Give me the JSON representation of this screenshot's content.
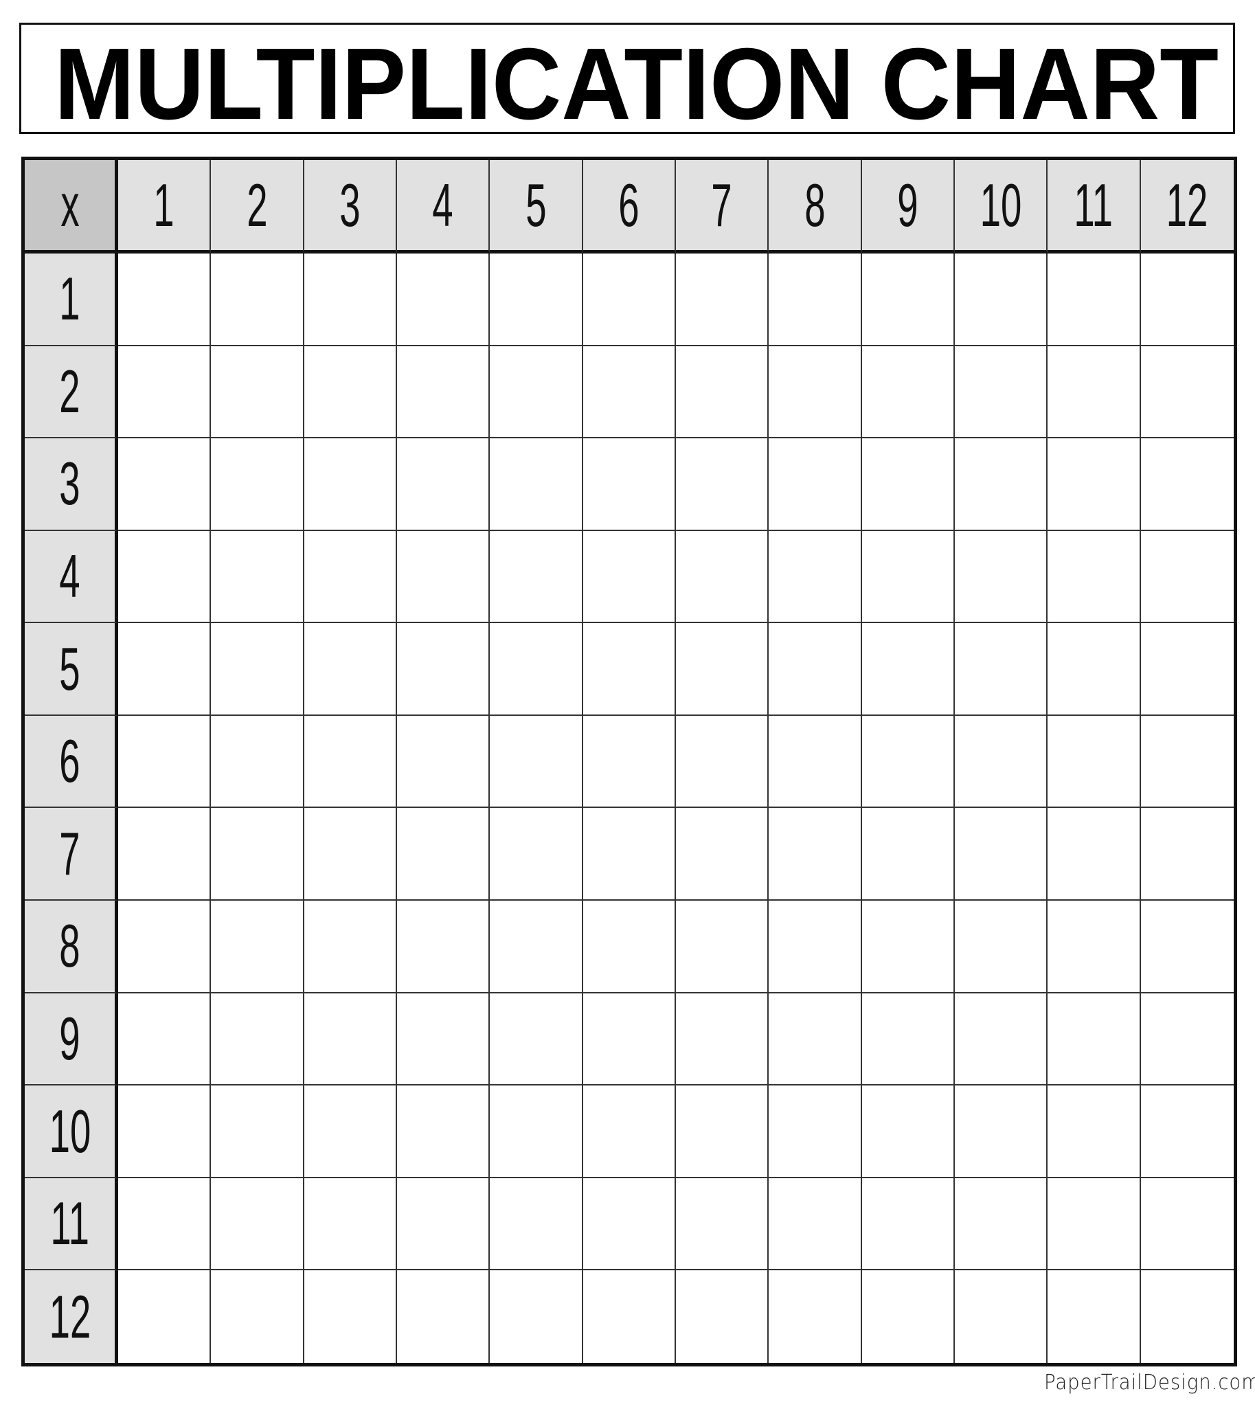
{
  "title": "MULTIPLICATION CHART",
  "corner_label": "x",
  "column_headers": [
    "1",
    "2",
    "3",
    "4",
    "5",
    "6",
    "7",
    "8",
    "9",
    "10",
    "11",
    "12"
  ],
  "row_headers": [
    "1",
    "2",
    "3",
    "4",
    "5",
    "6",
    "7",
    "8",
    "9",
    "10",
    "11",
    "12"
  ],
  "footer": "PaperTrailDesign.com",
  "colors": {
    "header_fill": "#e1e1e1",
    "corner_fill": "#c6c6c6",
    "line": "#111111"
  }
}
